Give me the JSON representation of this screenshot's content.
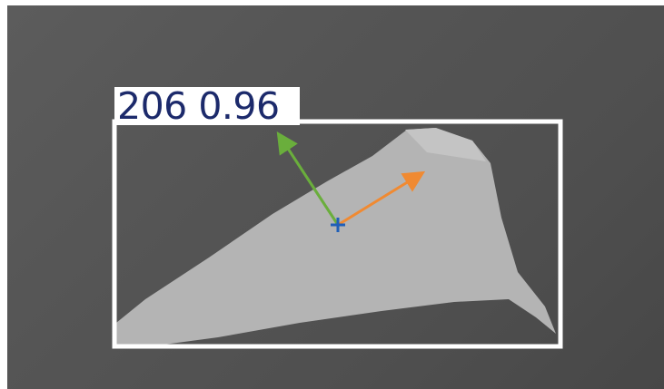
{
  "detection": {
    "class_id": "206",
    "confidence": "0.96"
  },
  "colors": {
    "box": "#ffffff",
    "label_text": "#1c2a6b",
    "object": "#b4b4b4",
    "axis_major": "#f08a32",
    "axis_minor": "#6aae3c",
    "center_mark": "#1f5fb8"
  }
}
